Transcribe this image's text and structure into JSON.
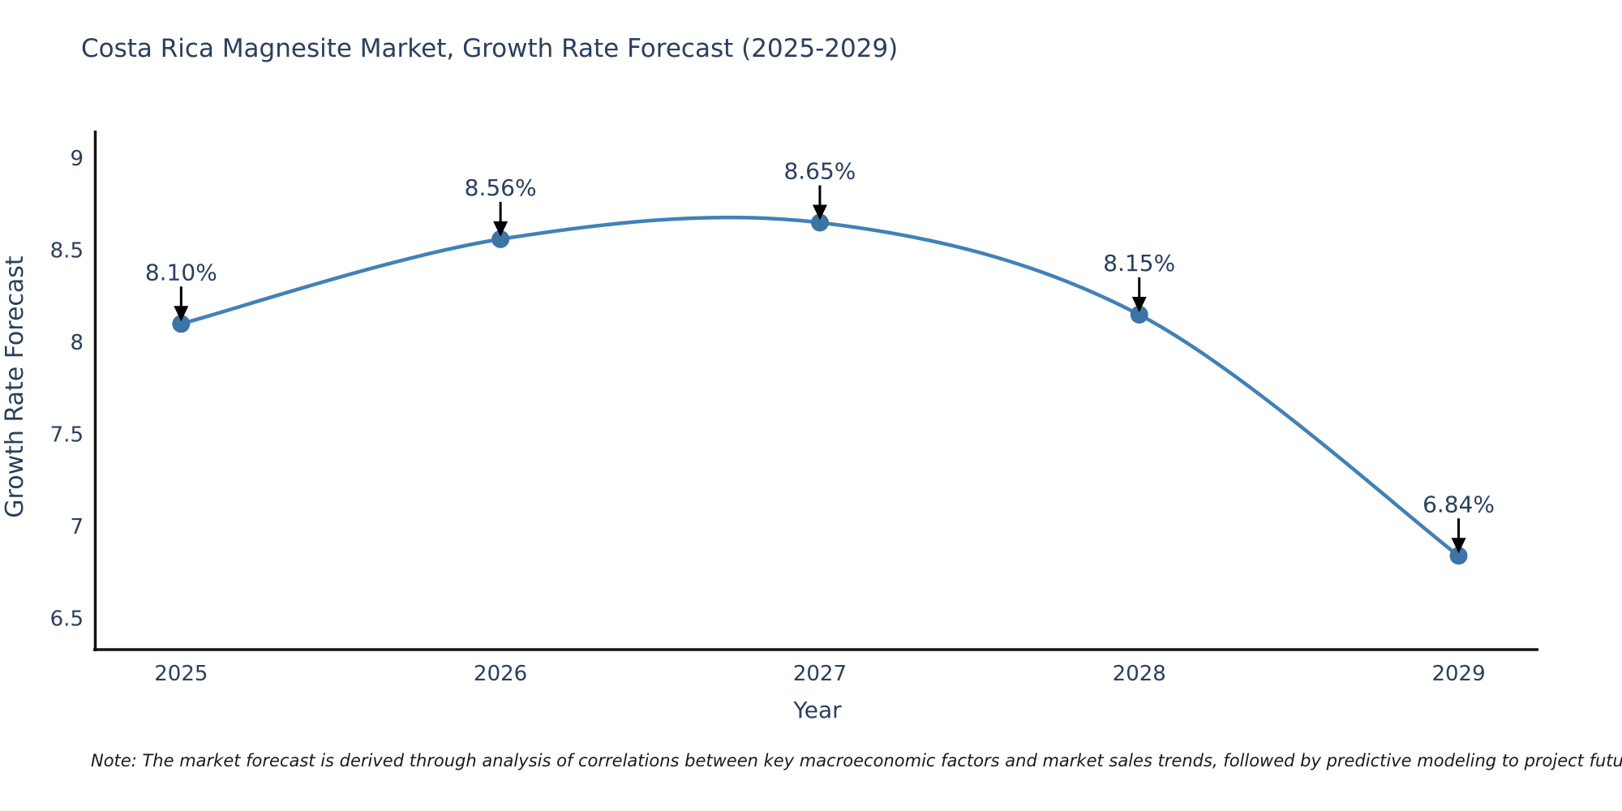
{
  "page": {
    "title": "Costa Rica Magnesite Market, Growth Rate Forecast (2025-2029)",
    "note": "Note: The market forecast is derived through analysis of correlations between key macroeconomic factors and market sales trends, followed by predictive modeling to project future sales"
  },
  "colors": {
    "background": "#ffffff",
    "title_text": "#2a3f5f",
    "axis_text": "#2a3f5f",
    "axis_line": "#131313",
    "line": "#4181b6",
    "marker": "#3c74a6",
    "annotation_text": "#2a3f5f",
    "arrow": "#000000",
    "note_text": "#1a1a1a"
  },
  "chart_data": {
    "type": "line",
    "title": "Costa Rica Magnesite Market, Growth Rate Forecast (2025-2029)",
    "xlabel": "Year",
    "ylabel": "Growth Rate Forecast",
    "categories": [
      "2025",
      "2026",
      "2027",
      "2028",
      "2029"
    ],
    "series": [
      {
        "name": "Growth Rate Forecast",
        "values": [
          8.1,
          8.56,
          8.65,
          8.15,
          6.84
        ]
      }
    ],
    "data_labels": [
      "8.10%",
      "8.56%",
      "8.65%",
      "8.15%",
      "6.84%"
    ],
    "y_tick_labels": [
      "6.5",
      "7",
      "7.5",
      "8",
      "8.5",
      "9"
    ],
    "ylim": [
      6.33,
      9.15
    ],
    "xlim": [
      2024.73,
      2029.25
    ],
    "line_shape": "spline",
    "grid": false,
    "legend_position": "none"
  }
}
